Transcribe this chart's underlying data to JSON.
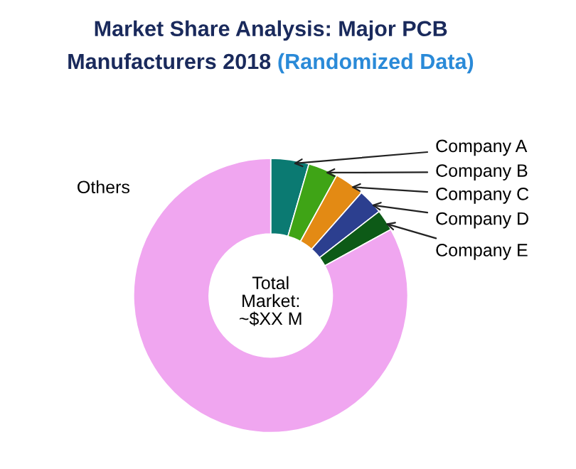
{
  "chart_data": {
    "type": "donut",
    "title": "Market Share Analysis: Major PCB Manufacturers 2018",
    "subtitle": "(Randomized Data)",
    "categories": [
      "Company A",
      "Company B",
      "Company C",
      "Company D",
      "Company E",
      "Others"
    ],
    "values": [
      4.5,
      3.5,
      3.5,
      3,
      2.5,
      83
    ],
    "colors": [
      "#0b7a72",
      "#3fa416",
      "#e38a14",
      "#2c3f8f",
      "#0d5a17",
      "#f0a6f0"
    ],
    "annotations": [
      "Total\nMarket:\n~$XX M"
    ],
    "legend": false
  }
}
